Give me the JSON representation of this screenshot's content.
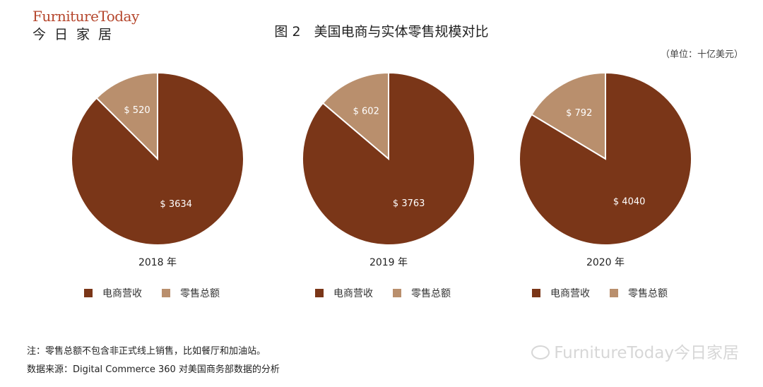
{
  "logo": {
    "en": "FurnitureToday",
    "cn": "今日家居"
  },
  "title": "图 2　美国电商与实体零售规模对比",
  "unit": "（单位：十亿美元）",
  "chart_data": [
    {
      "type": "pie",
      "title": "2018 年",
      "labels": [
        "电商营收",
        "零售总额"
      ],
      "values": [
        3634,
        520
      ],
      "value_labels": [
        "$ 3634",
        "$ 520"
      ],
      "colors": [
        "#7a3618",
        "#b98f6d"
      ]
    },
    {
      "type": "pie",
      "title": "2019 年",
      "labels": [
        "电商营收",
        "零售总额"
      ],
      "values": [
        3763,
        602
      ],
      "value_labels": [
        "$ 3763",
        "$ 602"
      ],
      "colors": [
        "#7a3618",
        "#b98f6d"
      ]
    },
    {
      "type": "pie",
      "title": "2020 年",
      "labels": [
        "电商营收",
        "零售总额"
      ],
      "values": [
        4040,
        792
      ],
      "value_labels": [
        "$ 4040",
        "$ 792"
      ],
      "colors": [
        "#7a3618",
        "#b98f6d"
      ]
    }
  ],
  "notes": {
    "note": "注：零售总额不包含非正式线上销售，比如餐厅和加油站。",
    "source": "数据来源：Digital Commerce 360 对美国商务部数据的分析"
  },
  "watermark": "FurnitureToday今日家居",
  "watermark_icon": "wechat-icon"
}
